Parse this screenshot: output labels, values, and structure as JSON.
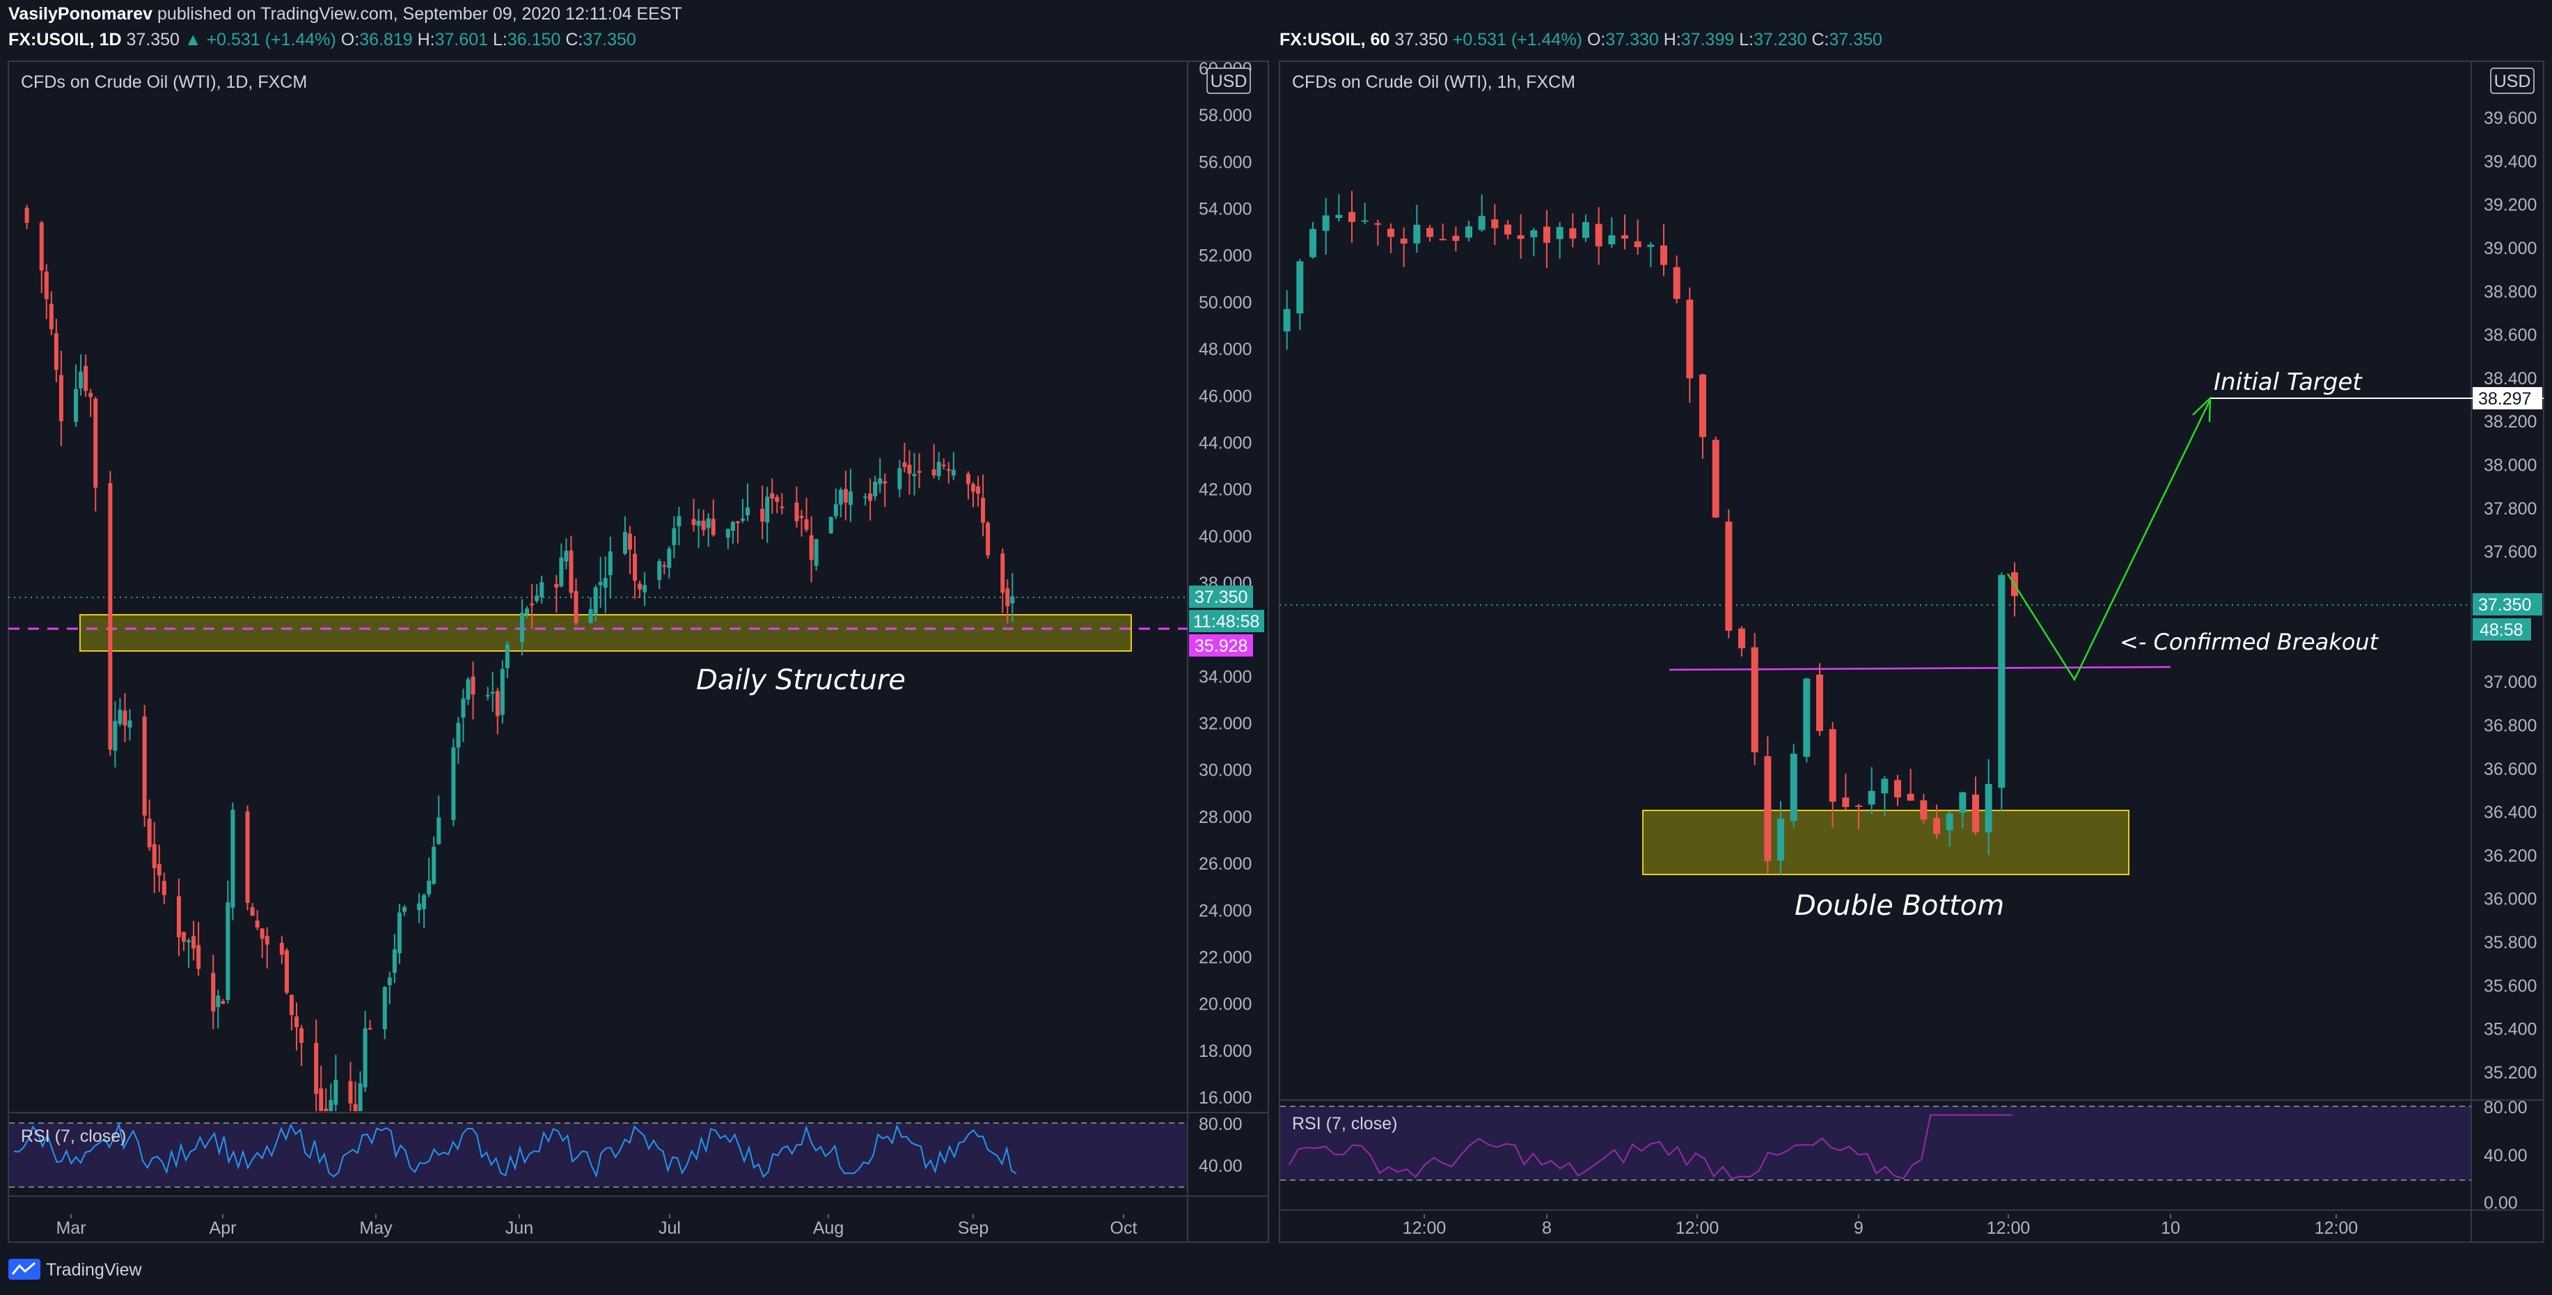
{
  "header": {
    "author": "VasilyPonomarev",
    "published": "published on TradingView.com, September 09, 2020 12:11:04 EEST"
  },
  "left": {
    "legend": {
      "symbol": "FX:USOIL, 1D",
      "price": "37.350",
      "change": "▲ +0.531 (+1.44%)",
      "o_label": "O:",
      "o": "36.819",
      "h_label": "H:",
      "h": "37.601",
      "l_label": "L:",
      "l": "36.150",
      "c_label": "C:",
      "c": "37.350"
    },
    "title": "CFDs on Crude Oil (WTI), 1D, FXCM",
    "currency": "USD",
    "rsi_label": "RSI (7, close)",
    "annotation": "Daily Structure",
    "price_tag": "37.350",
    "countdown_tag": "11:48:58",
    "level_tag": "35.928"
  },
  "right": {
    "legend": {
      "symbol": "FX:USOIL, 60",
      "price": "37.350",
      "change": "+0.531 (+1.44%)",
      "o_label": "O:",
      "o": "37.330",
      "h_label": "H:",
      "h": "37.399",
      "l_label": "L:",
      "l": "37.230",
      "c_label": "C:",
      "c": "37.350"
    },
    "title": "CFDs on Crude Oil (WTI), 1h, FXCM",
    "currency": "USD",
    "rsi_label": "RSI (7, close)",
    "annotation_pattern": "Double Bottom",
    "annotation_target": "Initial Target",
    "annotation_breakout": "<- Confirmed Breakout",
    "price_tag": "37.350",
    "countdown_tag": "48:58",
    "target_tag": "38.297"
  },
  "footer": {
    "brand": "TradingView"
  },
  "colors": {
    "background": "#131722",
    "up": "#26a69a",
    "down": "#ef5350",
    "zone_fill": "#6b6a13",
    "zone_border": "#f3c90a",
    "rsi_line_left": "#2196f3",
    "rsi_line_right": "#9c27b0",
    "level_line": "#e040fb",
    "arrow": "#22dd22"
  },
  "chart_data": [
    {
      "type": "candlestick",
      "title": "CFDs on Crude Oil (WTI), 1D, FXCM",
      "x_tick_labels": [
        "Mar",
        "Apr",
        "May",
        "Jun",
        "Jul",
        "Aug",
        "Sep",
        "Oct"
      ],
      "y_tick_labels": [
        "60.000",
        "58.000",
        "56.000",
        "54.000",
        "52.000",
        "50.000",
        "48.000",
        "46.000",
        "44.000",
        "42.000",
        "40.000",
        "38.000",
        "34.000",
        "32.000",
        "30.000",
        "28.000",
        "26.000",
        "24.000",
        "22.000",
        "20.000",
        "18.000",
        "16.000"
      ],
      "ylim": [
        14.8,
        60.5
      ],
      "approx_close_path": [
        [
          "2020-02-21",
          53.4
        ],
        [
          "2020-02-24",
          51.4
        ],
        [
          "2020-02-26",
          48.7
        ],
        [
          "2020-02-28",
          45.2
        ],
        [
          "2020-03-03",
          47.1
        ],
        [
          "2020-03-05",
          45.9
        ],
        [
          "2020-03-09",
          31.1
        ],
        [
          "2020-03-11",
          32.9
        ],
        [
          "2020-03-13",
          31.7
        ],
        [
          "2020-03-17",
          26.9
        ],
        [
          "2020-03-19",
          25.1
        ],
        [
          "2020-03-23",
          23.1
        ],
        [
          "2020-03-26",
          22.4
        ],
        [
          "2020-03-30",
          20.1
        ],
        [
          "2020-04-01",
          20.3
        ],
        [
          "2020-04-03",
          28.3
        ],
        [
          "2020-04-07",
          23.5
        ],
        [
          "2020-04-09",
          22.8
        ],
        [
          "2020-04-13",
          21.9
        ],
        [
          "2020-04-15",
          19.8
        ],
        [
          "2020-04-17",
          18.3
        ],
        [
          "2020-04-20",
          16.0
        ],
        [
          "2020-04-22",
          14.9
        ],
        [
          "2020-04-24",
          16.8
        ],
        [
          "2020-04-28",
          15.2
        ],
        [
          "2020-04-30",
          18.8
        ],
        [
          "2020-05-04",
          20.3
        ],
        [
          "2020-05-07",
          23.6
        ],
        [
          "2020-05-11",
          24.3
        ],
        [
          "2020-05-13",
          25.3
        ],
        [
          "2020-05-15",
          28.3
        ],
        [
          "2020-05-19",
          31.8
        ],
        [
          "2020-05-21",
          33.6
        ],
        [
          "2020-05-25",
          33.4
        ],
        [
          "2020-05-27",
          32.5
        ],
        [
          "2020-05-29",
          35.3
        ],
        [
          "2020-06-02",
          36.8
        ],
        [
          "2020-06-04",
          37.5
        ],
        [
          "2020-06-08",
          38.2
        ],
        [
          "2020-06-10",
          39.4
        ],
        [
          "2020-06-12",
          36.2
        ],
        [
          "2020-06-16",
          37.7
        ],
        [
          "2020-06-18",
          38.5
        ],
        [
          "2020-06-22",
          40.6
        ],
        [
          "2020-06-24",
          38.0
        ],
        [
          "2020-06-26",
          38.3
        ],
        [
          "2020-06-30",
          39.1
        ],
        [
          "2020-07-02",
          40.5
        ],
        [
          "2020-07-06",
          40.5
        ],
        [
          "2020-07-08",
          40.6
        ],
        [
          "2020-07-10",
          40.4
        ],
        [
          "2020-07-14",
          40.4
        ],
        [
          "2020-07-16",
          40.8
        ],
        [
          "2020-07-20",
          40.8
        ],
        [
          "2020-07-22",
          41.9
        ],
        [
          "2020-07-24",
          41.3
        ],
        [
          "2020-07-28",
          41.0
        ],
        [
          "2020-07-30",
          39.3
        ],
        [
          "2020-08-03",
          41.0
        ],
        [
          "2020-08-05",
          42.2
        ],
        [
          "2020-08-07",
          41.5
        ],
        [
          "2020-08-11",
          41.5
        ],
        [
          "2020-08-13",
          42.3
        ],
        [
          "2020-08-17",
          42.5
        ],
        [
          "2020-08-19",
          42.8
        ],
        [
          "2020-08-21",
          42.4
        ],
        [
          "2020-08-25",
          43.2
        ],
        [
          "2020-08-27",
          43.1
        ],
        [
          "2020-08-31",
          42.6
        ],
        [
          "2020-09-02",
          41.5
        ],
        [
          "2020-09-04",
          39.4
        ],
        [
          "2020-09-08",
          36.8
        ],
        [
          "2020-09-09",
          37.35
        ]
      ],
      "zones": [
        {
          "label": "Daily Structure",
          "low": 35.0,
          "high": 36.6,
          "from": "2020-03-03",
          "to": "2020-10-01"
        }
      ],
      "levels": [
        35.928
      ],
      "last_price": 37.35,
      "rsi": {
        "name": "RSI (7, close)",
        "period": 7,
        "bands": [
          70,
          30
        ],
        "ticks": [
          "80.00",
          "40.00"
        ]
      }
    },
    {
      "type": "candlestick",
      "title": "CFDs on Crude Oil (WTI), 1h, FXCM",
      "x_tick_labels": [
        "12:00",
        "8",
        "12:00",
        "9",
        "12:00",
        "10",
        "12:00"
      ],
      "y_tick_labels": [
        "39.600",
        "39.400",
        "39.200",
        "39.000",
        "38.800",
        "38.600",
        "38.400",
        "38.200",
        "38.000",
        "37.800",
        "37.600",
        "37.000",
        "36.800",
        "36.600",
        "36.400",
        "36.200",
        "36.000",
        "35.800",
        "35.600",
        "35.400",
        "35.200"
      ],
      "ylim": [
        35.05,
        39.78
      ],
      "approx_close_path": [
        [
          "Sep 7 04:00",
          38.73
        ],
        [
          "Sep 7 06:00",
          39.03
        ],
        [
          "Sep 7 08:00",
          39.2
        ],
        [
          "Sep 7 10:00",
          39.13
        ],
        [
          "Sep 7 12:00",
          39.03
        ],
        [
          "Sep 7 14:00",
          39.1
        ],
        [
          "Sep 7 16:00",
          39.05
        ],
        [
          "Sep 7 18:00",
          39.08
        ],
        [
          "Sep 7 20:00",
          39.1
        ],
        [
          "Sep 7 22:00",
          39.04
        ],
        [
          "Sep 8 00:00",
          39.05
        ],
        [
          "Sep 8 02:00",
          39.1
        ],
        [
          "Sep 8 04:00",
          39.05
        ],
        [
          "Sep 8 06:00",
          39.0
        ],
        [
          "Sep 8 08:00",
          38.99
        ],
        [
          "Sep 8 10:00",
          38.75
        ],
        [
          "Sep 8 11:00",
          38.4
        ],
        [
          "Sep 8 12:00",
          38.1
        ],
        [
          "Sep 8 13:00",
          37.7
        ],
        [
          "Sep 8 14:00",
          37.2
        ],
        [
          "Sep 8 15:00",
          37.1
        ],
        [
          "Sep 8 16:00",
          36.7
        ],
        [
          "Sep 8 17:00",
          36.2
        ],
        [
          "Sep 8 18:00",
          36.4
        ],
        [
          "Sep 8 19:00",
          36.7
        ],
        [
          "Sep 8 20:00",
          37.0
        ],
        [
          "Sep 8 21:00",
          36.8
        ],
        [
          "Sep 8 22:00",
          36.45
        ],
        [
          "Sep 9 00:00",
          36.4
        ],
        [
          "Sep 9 02:00",
          36.55
        ],
        [
          "Sep 9 04:00",
          36.45
        ],
        [
          "Sep 9 06:00",
          36.3
        ],
        [
          "Sep 9 08:00",
          36.45
        ],
        [
          "Sep 9 09:00",
          36.35
        ],
        [
          "Sep 9 10:00",
          36.5
        ],
        [
          "Sep 9 11:00",
          37.5
        ],
        [
          "Sep 9 12:00",
          37.35
        ]
      ],
      "zones": [
        {
          "label": "Double Bottom",
          "low": 36.12,
          "high": 36.42
        }
      ],
      "levels": [
        37.04
      ],
      "projection": {
        "label": "Initial Target",
        "path": [
          37.49,
          37.0,
          38.297
        ],
        "target": 38.297
      },
      "last_price": 37.35,
      "rsi": {
        "name": "RSI (7, close)",
        "period": 7,
        "bands": [
          70,
          30
        ],
        "ticks": [
          "80.00",
          "40.00",
          "0.00"
        ]
      }
    }
  ]
}
